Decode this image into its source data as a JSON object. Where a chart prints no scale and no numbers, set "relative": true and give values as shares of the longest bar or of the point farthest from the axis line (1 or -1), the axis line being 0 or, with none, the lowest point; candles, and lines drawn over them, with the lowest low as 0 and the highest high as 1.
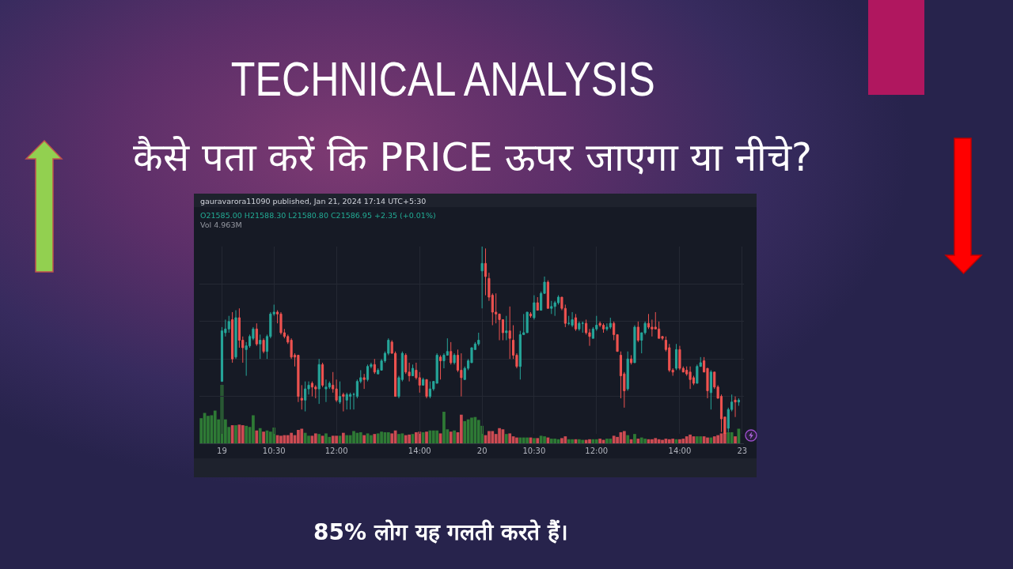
{
  "chart_data": [
    {
      "type": "candlestick",
      "title": "TECHNICAL ANALYSIS",
      "subtitle": "कैसे पता करें कि PRICE ऊपर जाएगा या नीचे?",
      "relative": true,
      "grid": true,
      "categories": [
        null,
        null,
        null,
        null,
        null,
        null,
        "19",
        null,
        null,
        null,
        null,
        null,
        null,
        null,
        null,
        null,
        null,
        null,
        null,
        null,
        null,
        "10:30",
        null,
        null,
        null,
        null,
        null,
        null,
        null,
        null,
        null,
        null,
        null,
        null,
        null,
        null,
        null,
        null,
        null,
        "12:00",
        null,
        null,
        null,
        null,
        null,
        null,
        null,
        null,
        null,
        null,
        null,
        null,
        null,
        null,
        null,
        null,
        null,
        null,
        null,
        null,
        null,
        null,
        null,
        "14:00",
        null,
        null,
        null,
        null,
        null,
        null,
        null,
        null,
        null,
        null,
        null,
        null,
        null,
        null,
        null,
        null,
        null,
        "20",
        null,
        null,
        null,
        null,
        null,
        null,
        null,
        null,
        null,
        null,
        null,
        null,
        null,
        null,
        "10:30",
        null,
        null,
        null,
        null,
        null,
        null,
        null,
        null,
        null,
        null,
        null,
        null,
        null,
        null,
        null,
        null,
        null,
        "12:00",
        null,
        null,
        null,
        null,
        null,
        null,
        null,
        null,
        null,
        null,
        null,
        null,
        null,
        null,
        null,
        null,
        null,
        null,
        null,
        null,
        null,
        null,
        null,
        "14:00",
        null,
        null,
        null,
        null,
        null,
        null,
        null,
        null,
        null,
        null,
        null,
        null,
        null,
        null,
        null,
        null,
        null,
        "23"
      ],
      "ohlc": [
        null,
        null,
        null,
        null,
        null,
        null,
        [
          0.28,
          0.57,
          0.28,
          0.55
        ],
        [
          0.54,
          0.61,
          0.52,
          0.56
        ],
        [
          0.56,
          0.63,
          0.54,
          0.6
        ],
        [
          0.61,
          0.65,
          0.38,
          0.4
        ],
        [
          0.41,
          0.66,
          0.4,
          0.62
        ],
        [
          0.62,
          0.67,
          0.46,
          0.5
        ],
        [
          0.5,
          0.52,
          0.38,
          0.46
        ],
        [
          0.45,
          0.49,
          0.31,
          0.47
        ],
        [
          0.47,
          0.53,
          0.46,
          0.52
        ],
        [
          0.51,
          0.57,
          0.5,
          0.56
        ],
        [
          0.56,
          0.59,
          0.47,
          0.48
        ],
        [
          0.48,
          0.53,
          0.4,
          0.5
        ],
        [
          0.5,
          0.51,
          0.43,
          0.44
        ],
        [
          0.44,
          0.53,
          0.4,
          0.52
        ],
        [
          0.52,
          0.65,
          0.51,
          0.64
        ],
        [
          0.64,
          0.69,
          0.63,
          0.65
        ],
        [
          0.65,
          0.66,
          0.59,
          0.64
        ],
        [
          0.64,
          0.65,
          0.53,
          0.54
        ],
        [
          0.54,
          0.56,
          0.51,
          0.52
        ],
        [
          0.52,
          0.53,
          0.48,
          0.49
        ],
        [
          0.5,
          0.51,
          0.4,
          0.41
        ],
        [
          0.42,
          0.43,
          0.36,
          0.41
        ],
        [
          0.42,
          0.42,
          0.17,
          0.2
        ],
        [
          0.19,
          0.26,
          0.13,
          0.18
        ],
        [
          0.18,
          0.28,
          0.12,
          0.24
        ],
        [
          0.24,
          0.28,
          0.21,
          0.26
        ],
        [
          0.27,
          0.28,
          0.2,
          0.25
        ],
        [
          0.25,
          0.26,
          0.19,
          0.24
        ],
        [
          0.24,
          0.4,
          0.16,
          0.37
        ],
        [
          0.37,
          0.38,
          0.25,
          0.26
        ],
        [
          0.24,
          0.29,
          0.17,
          0.25
        ],
        [
          0.25,
          0.28,
          0.24,
          0.27
        ],
        [
          0.26,
          0.33,
          0.22,
          0.24
        ],
        [
          0.24,
          0.29,
          0.17,
          0.18
        ],
        [
          0.17,
          0.28,
          0.16,
          0.2
        ],
        [
          0.21,
          0.22,
          0.12,
          0.2
        ],
        [
          0.18,
          0.22,
          0.13,
          0.21
        ],
        [
          0.2,
          0.22,
          0.13,
          0.21
        ],
        [
          0.21,
          0.22,
          0.13,
          0.21
        ],
        [
          0.2,
          0.29,
          0.19,
          0.28
        ],
        [
          0.28,
          0.34,
          0.27,
          0.3
        ],
        [
          0.3,
          0.32,
          0.24,
          0.29
        ],
        [
          0.29,
          0.37,
          0.28,
          0.36
        ],
        [
          0.36,
          0.38,
          0.35,
          0.37
        ],
        [
          0.37,
          0.4,
          0.32,
          0.33
        ],
        [
          0.32,
          0.35,
          0.32,
          0.34
        ],
        [
          0.34,
          0.4,
          0.34,
          0.39
        ],
        [
          0.39,
          0.44,
          0.38,
          0.43
        ],
        [
          0.43,
          0.51,
          0.42,
          0.5
        ],
        [
          0.49,
          0.5,
          0.43,
          0.43
        ],
        [
          0.43,
          0.44,
          0.2,
          0.2
        ],
        [
          0.2,
          0.31,
          0.19,
          0.3
        ],
        [
          0.29,
          0.44,
          0.28,
          0.43
        ],
        [
          0.42,
          0.43,
          0.32,
          0.33
        ],
        [
          0.33,
          0.38,
          0.28,
          0.31
        ],
        [
          0.31,
          0.37,
          0.31,
          0.35
        ],
        [
          0.34,
          0.38,
          0.29,
          0.3
        ],
        [
          0.3,
          0.33,
          0.22,
          0.26
        ],
        [
          0.26,
          0.3,
          0.26,
          0.29
        ],
        [
          0.29,
          0.29,
          0.19,
          0.2
        ],
        [
          0.2,
          0.28,
          0.19,
          0.24
        ],
        [
          0.24,
          0.28,
          0.23,
          0.28
        ],
        [
          0.27,
          0.43,
          0.27,
          0.42
        ],
        [
          0.41,
          0.42,
          0.29,
          0.39
        ],
        [
          0.39,
          0.43,
          0.35,
          0.42
        ],
        [
          0.42,
          0.51,
          0.42,
          0.44
        ],
        [
          0.44,
          0.49,
          0.37,
          0.38
        ],
        [
          0.38,
          0.43,
          0.37,
          0.42
        ],
        [
          0.42,
          0.45,
          0.33,
          0.34
        ],
        [
          0.34,
          0.43,
          0.2,
          0.3
        ],
        [
          0.29,
          0.36,
          0.29,
          0.35
        ],
        [
          0.35,
          0.4,
          0.34,
          0.39
        ],
        [
          0.38,
          0.46,
          0.38,
          0.46
        ],
        [
          0.45,
          0.49,
          0.45,
          0.48
        ],
        [
          0.48,
          0.54,
          0.47,
          0.5
        ],
        [
          0.87,
          1,
          0.67,
          0.91
        ],
        [
          0.91,
          0.99,
          0.74,
          0.84
        ],
        [
          0.83,
          0.86,
          0.71,
          0.73
        ],
        [
          0.74,
          0.75,
          0.58,
          0.65
        ],
        [
          0.65,
          0.75,
          0.59,
          0.64
        ],
        [
          0.64,
          0.64,
          0.5,
          0.61
        ],
        [
          0.61,
          0.61,
          0.5,
          0.54
        ],
        [
          0.54,
          0.63,
          0.5,
          0.55
        ],
        [
          0.55,
          0.68,
          0.4,
          0.51
        ],
        [
          0.5,
          0.58,
          0.4,
          0.42
        ],
        [
          0.42,
          0.43,
          0.35,
          0.36
        ],
        [
          0.36,
          0.55,
          0.29,
          0.53
        ],
        [
          0.53,
          0.64,
          0.53,
          0.54
        ],
        [
          0.54,
          0.65,
          0.54,
          0.65
        ],
        [
          0.64,
          0.65,
          0.62,
          0.63
        ],
        [
          0.62,
          0.74,
          0.61,
          0.7
        ],
        [
          0.7,
          0.73,
          0.66,
          0.66
        ],
        [
          0.66,
          0.76,
          0.66,
          0.75
        ],
        [
          0.75,
          0.84,
          0.75,
          0.81
        ],
        [
          0.81,
          0.82,
          0.67,
          0.67
        ],
        [
          0.67,
          0.71,
          0.64,
          0.68
        ],
        [
          0.68,
          0.71,
          0.63,
          0.7
        ],
        [
          0.7,
          0.74,
          0.69,
          0.73
        ],
        [
          0.73,
          0.73,
          0.66,
          0.67
        ],
        [
          0.67,
          0.69,
          0.57,
          0.59
        ],
        [
          0.59,
          0.63,
          0.58,
          0.59
        ],
        [
          0.58,
          0.65,
          0.57,
          0.61
        ],
        [
          0.62,
          0.64,
          0.55,
          0.56
        ],
        [
          0.56,
          0.6,
          0.55,
          0.59
        ],
        [
          0.59,
          0.6,
          0.54,
          0.59
        ],
        [
          0.59,
          0.61,
          0.53,
          0.54
        ],
        [
          0.54,
          0.56,
          0.47,
          0.52
        ],
        [
          0.51,
          0.57,
          0.51,
          0.56
        ],
        [
          0.56,
          0.63,
          0.55,
          0.58
        ],
        [
          0.59,
          0.6,
          0.57,
          0.58
        ],
        [
          0.58,
          0.59,
          0.54,
          0.56
        ],
        [
          0.56,
          0.59,
          0.55,
          0.57
        ],
        [
          0.57,
          0.62,
          0.56,
          0.59
        ],
        [
          0.59,
          0.6,
          0.5,
          0.53
        ],
        [
          0.53,
          0.53,
          0.44,
          0.44
        ],
        [
          0.42,
          0.44,
          0.19,
          0.31
        ],
        [
          0.32,
          0.33,
          0.14,
          0.23
        ],
        [
          0.24,
          0.44,
          0.23,
          0.4
        ],
        [
          0.4,
          0.42,
          0.37,
          0.38
        ],
        [
          0.38,
          0.58,
          0.38,
          0.57
        ],
        [
          0.57,
          0.6,
          0.49,
          0.5
        ],
        [
          0.5,
          0.54,
          0.43,
          0.54
        ],
        [
          0.54,
          0.6,
          0.53,
          0.59
        ],
        [
          0.59,
          0.64,
          0.56,
          0.57
        ],
        [
          0.57,
          0.61,
          0.52,
          0.56
        ],
        [
          0.57,
          0.65,
          0.56,
          0.56
        ],
        [
          0.56,
          0.6,
          0.51,
          0.51
        ],
        [
          0.52,
          0.52,
          0.5,
          0.51
        ],
        [
          0.5,
          0.52,
          0.44,
          0.45
        ],
        [
          0.46,
          0.48,
          0.33,
          0.34
        ],
        [
          0.34,
          0.35,
          0.31,
          0.33
        ],
        [
          0.35,
          0.48,
          0.34,
          0.45
        ],
        [
          0.45,
          0.47,
          0.34,
          0.35
        ],
        [
          0.35,
          0.36,
          0.33,
          0.33
        ],
        [
          0.34,
          0.36,
          0.31,
          0.32
        ],
        [
          0.33,
          0.36,
          0.24,
          0.29
        ],
        [
          0.3,
          0.31,
          0.26,
          0.27
        ],
        [
          0.27,
          0.37,
          0.27,
          0.36
        ],
        [
          0.36,
          0.41,
          0.36,
          0.38
        ],
        [
          0.39,
          0.41,
          0.33,
          0.33
        ],
        [
          0.35,
          0.35,
          0.19,
          0.23
        ],
        [
          0.22,
          0.34,
          0.13,
          0.33
        ],
        [
          0.33,
          0.33,
          0.24,
          0.25
        ],
        [
          0.25,
          0.26,
          0.19,
          0.19
        ],
        [
          0.2,
          0.21,
          0.01,
          0.08
        ],
        [
          0.09,
          0.09,
          0,
          0
        ],
        [
          0.03,
          0.14,
          0.01,
          0.13
        ],
        [
          0.13,
          0.21,
          0.12,
          0.17
        ],
        [
          0.18,
          0.2,
          0.09,
          0.17
        ],
        [
          0.17,
          0.19,
          0.15,
          0.18
        ],
        null
      ],
      "colors": [
        null,
        null,
        null,
        null,
        null,
        null,
        "#26a69a",
        "#26a69a",
        "#26a69a",
        "#ef5350",
        "#26a69a",
        "#ef5350",
        "#ef5350",
        "#26a69a",
        "#26a69a",
        "#26a69a",
        "#ef5350",
        "#26a69a",
        "#ef5350",
        "#26a69a",
        "#26a69a",
        "#26a69a",
        "#ef5350",
        "#ef5350",
        "#ef5350",
        "#ef5350",
        "#ef5350",
        "#ef5350",
        "#ef5350",
        "#ef5350",
        "#26a69a",
        "#26a69a",
        "#ef5350",
        "#ef5350",
        "#26a69a",
        "#ef5350",
        "#26a69a",
        "#26a69a",
        "#ef5350",
        "#ef5350",
        "#26a69a",
        "#ef5350",
        "#26a69a",
        "#26a69a",
        "#26a69a",
        "#26a69a",
        "#26a69a",
        "#ef5350",
        "#26a69a",
        "#26a69a",
        "#ef5350",
        "#26a69a",
        "#26a69a",
        "#26a69a",
        "#26a69a",
        "#ef5350",
        "#ef5350",
        "#26a69a",
        "#26a69a",
        "#ef5350",
        "#ef5350",
        "#26a69a",
        "#ef5350",
        "#ef5350",
        "#26a69a",
        "#ef5350",
        "#26a69a",
        "#26a69a",
        "#26a69a",
        "#ef5350",
        "#26a69a",
        "#26a69a",
        "#ef5350",
        "#26a69a",
        "#ef5350",
        "#ef5350",
        "#26a69a",
        "#26a69a",
        "#26a69a",
        "#26a69a",
        "#26a69a",
        "#26a69a",
        "#ef5350",
        "#ef5350",
        "#ef5350",
        "#ef5350",
        "#ef5350",
        "#ef5350",
        "#26a69a",
        "#ef5350",
        "#ef5350",
        "#ef5350",
        "#26a69a",
        "#26a69a",
        "#26a69a",
        "#ef5350",
        "#26a69a",
        "#ef5350",
        "#26a69a",
        "#26a69a",
        "#ef5350",
        "#26a69a",
        "#26a69a",
        "#26a69a",
        "#ef5350",
        "#ef5350",
        "#26a69a",
        "#26a69a",
        "#ef5350",
        "#26a69a",
        "#26a69a",
        "#ef5350",
        "#ef5350",
        "#26a69a",
        "#26a69a",
        "#ef5350",
        "#ef5350",
        "#26a69a",
        "#26a69a",
        "#ef5350",
        "#ef5350",
        "#ef5350",
        "#ef5350",
        "#26a69a",
        "#ef5350",
        "#26a69a",
        "#ef5350",
        "#26a69a",
        "#26a69a",
        "#ef5350",
        "#ef5350",
        "#ef5350",
        "#ef5350",
        "#ef5350",
        "#ef5350",
        "#ef5350",
        "#ef5350",
        "#26a69a",
        "#ef5350",
        "#ef5350",
        "#ef5350",
        "#ef5350",
        "#ef5350",
        "#26a69a",
        "#26a69a",
        "#ef5350",
        "#ef5350",
        "#26a69a",
        "#ef5350",
        "#ef5350",
        "#ef5350",
        "#ef5350",
        "#26a69a",
        "#26a69a",
        "#ef5350",
        "#26a69a",
        null
      ],
      "annotations": [
        "gauravarora11090 published, Jan 21, 2024 17:14 UTC+5:30",
        "O21585.00 H21588.30 L21580.80 C21586.95 +2.35 (+0.01%)",
        "Vol 4.963M",
        "85% लोग यह गलती करते हैं।"
      ]
    },
    {
      "type": "bar",
      "relative": true,
      "categories": [
        null,
        null,
        null,
        null,
        null,
        null,
        null,
        null,
        null,
        null,
        null,
        null,
        null,
        null,
        null,
        null,
        null,
        null,
        null,
        null,
        null,
        null,
        null,
        null,
        null,
        null,
        null,
        null,
        null,
        null,
        null,
        null,
        null,
        null,
        null,
        null,
        null,
        null,
        null,
        null,
        null,
        null,
        null,
        null,
        null,
        null,
        null,
        null,
        null,
        null,
        null,
        null,
        null,
        null,
        null,
        null,
        null,
        null,
        null,
        null,
        null,
        null,
        null,
        null,
        null,
        null,
        null,
        null,
        null,
        null,
        null,
        null,
        null,
        null,
        null,
        null,
        null,
        null,
        null,
        null,
        null,
        null,
        null,
        null,
        null,
        null,
        null,
        null,
        null,
        null,
        null,
        null,
        null,
        null,
        null,
        null,
        null,
        null,
        null,
        null,
        null,
        null,
        null,
        null,
        null,
        null,
        null,
        null,
        null,
        null,
        null,
        null,
        null,
        null,
        null,
        null,
        null,
        null,
        null,
        null,
        null,
        null,
        null,
        null,
        null,
        null,
        null,
        null,
        null,
        null,
        null,
        null,
        null,
        null,
        null,
        null,
        null,
        null,
        null,
        null,
        null,
        null,
        null,
        null,
        null,
        null,
        null,
        null,
        null,
        null,
        null,
        null,
        null,
        null,
        null,
        null,
        null
      ],
      "values": [
        0.43,
        0.52,
        0.47,
        0.48,
        0.56,
        0.41,
        1,
        0.41,
        0.28,
        0.31,
        0.31,
        0.32,
        0.31,
        0.3,
        0.28,
        0.48,
        0.22,
        0.26,
        0.2,
        0.22,
        0.2,
        0.27,
        0.14,
        0.13,
        0.14,
        0.14,
        0.18,
        0.14,
        0.23,
        0.25,
        0.18,
        0.13,
        0.13,
        0.17,
        0.16,
        0.13,
        0.17,
        0.11,
        0.13,
        0.13,
        0.13,
        0.18,
        0.14,
        0.14,
        0.21,
        0.18,
        0.19,
        0.14,
        0.17,
        0.14,
        0.16,
        0.17,
        0.2,
        0.19,
        0.19,
        0.17,
        0.22,
        0.16,
        0.17,
        0.14,
        0.15,
        0.16,
        0.19,
        0.2,
        0.19,
        0.2,
        0.22,
        0.22,
        0.22,
        0.17,
        0.54,
        0.24,
        0.2,
        0.22,
        0.19,
        0.49,
        0.38,
        0.41,
        0.44,
        0.45,
        0.4,
        0.3,
        0.14,
        0.21,
        0.21,
        0.16,
        0.26,
        0.24,
        0.16,
        0.17,
        0.12,
        0.1,
        0.1,
        0.1,
        0.1,
        0.1,
        0.09,
        0.09,
        0.13,
        0.12,
        0.1,
        0.08,
        0.08,
        0.07,
        0.09,
        0.12,
        0.07,
        0.07,
        0.07,
        0.07,
        0.06,
        0.06,
        0.07,
        0.07,
        0.07,
        0.08,
        0.06,
        0.08,
        0.08,
        0.13,
        0.11,
        0.19,
        0.21,
        0.14,
        0.07,
        0.16,
        0.08,
        0.1,
        0.08,
        0.07,
        0.07,
        0.09,
        0.07,
        0.06,
        0.08,
        0.07,
        0.08,
        0.07,
        0.07,
        0.08,
        0.12,
        0.15,
        0.12,
        0.12,
        0.12,
        0.12,
        0.1,
        0.1,
        0.12,
        0.14,
        0.17,
        0.18,
        0.19,
        0.19,
        0.12,
        0.25,
        null
      ],
      "colors": [
        "#2e7a35",
        "#2e7a35",
        "#2e7a35",
        "#2e7a35",
        "#2e7a35",
        "#2e7a35",
        "#2e7a35",
        "#2e7a35",
        "#2e7a35",
        "#cc4b52",
        "#2e7a35",
        "#cc4b52",
        "#cc4b52",
        "#2e7a35",
        "#2e7a35",
        "#2e7a35",
        "#cc4b52",
        "#2e7a35",
        "#cc4b52",
        "#2e7a35",
        "#2e7a35",
        "#2e7a35",
        "#cc4b52",
        "#cc4b52",
        "#cc4b52",
        "#cc4b52",
        "#cc4b52",
        "#cc4b52",
        "#cc4b52",
        "#cc4b52",
        "#2e7a35",
        "#2e7a35",
        "#cc4b52",
        "#cc4b52",
        "#2e7a35",
        "#cc4b52",
        "#2e7a35",
        "#2e7a35",
        "#cc4b52",
        "#cc4b52",
        "#2e7a35",
        "#cc4b52",
        "#2e7a35",
        "#2e7a35",
        "#2e7a35",
        "#2e7a35",
        "#2e7a35",
        "#cc4b52",
        "#2e7a35",
        "#2e7a35",
        "#cc4b52",
        "#2e7a35",
        "#2e7a35",
        "#2e7a35",
        "#2e7a35",
        "#cc4b52",
        "#cc4b52",
        "#2e7a35",
        "#2e7a35",
        "#cc4b52",
        "#cc4b52",
        "#2e7a35",
        "#cc4b52",
        "#cc4b52",
        "#2e7a35",
        "#cc4b52",
        "#2e7a35",
        "#2e7a35",
        "#2e7a35",
        "#cc4b52",
        "#2e7a35",
        "#2e7a35",
        "#cc4b52",
        "#2e7a35",
        "#cc4b52",
        "#cc4b52",
        "#2e7a35",
        "#2e7a35",
        "#2e7a35",
        "#2e7a35",
        "#2e7a35",
        "#2e7a35",
        "#cc4b52",
        "#cc4b52",
        "#cc4b52",
        "#cc4b52",
        "#cc4b52",
        "#cc4b52",
        "#2e7a35",
        "#cc4b52",
        "#cc4b52",
        "#cc4b52",
        "#2e7a35",
        "#2e7a35",
        "#2e7a35",
        "#cc4b52",
        "#2e7a35",
        "#cc4b52",
        "#2e7a35",
        "#2e7a35",
        "#cc4b52",
        "#2e7a35",
        "#2e7a35",
        "#2e7a35",
        "#cc4b52",
        "#cc4b52",
        "#2e7a35",
        "#2e7a35",
        "#cc4b52",
        "#2e7a35",
        "#2e7a35",
        "#cc4b52",
        "#cc4b52",
        "#2e7a35",
        "#2e7a35",
        "#cc4b52",
        "#cc4b52",
        "#2e7a35",
        "#2e7a35",
        "#cc4b52",
        "#cc4b52",
        "#cc4b52",
        "#cc4b52",
        "#2e7a35",
        "#cc4b52",
        "#2e7a35",
        "#cc4b52",
        "#2e7a35",
        "#2e7a35",
        "#cc4b52",
        "#cc4b52",
        "#cc4b52",
        "#cc4b52",
        "#cc4b52",
        "#cc4b52",
        "#cc4b52",
        "#cc4b52",
        "#2e7a35",
        "#cc4b52",
        "#cc4b52",
        "#cc4b52",
        "#cc4b52",
        "#cc4b52",
        "#2e7a35",
        "#2e7a35",
        "#cc4b52",
        "#cc4b52",
        "#2e7a35",
        "#cc4b52",
        "#cc4b52",
        "#cc4b52",
        "#cc4b52",
        "#2e7a35",
        "#2e7a35",
        "#cc4b52",
        "#2e7a35",
        null
      ]
    }
  ]
}
